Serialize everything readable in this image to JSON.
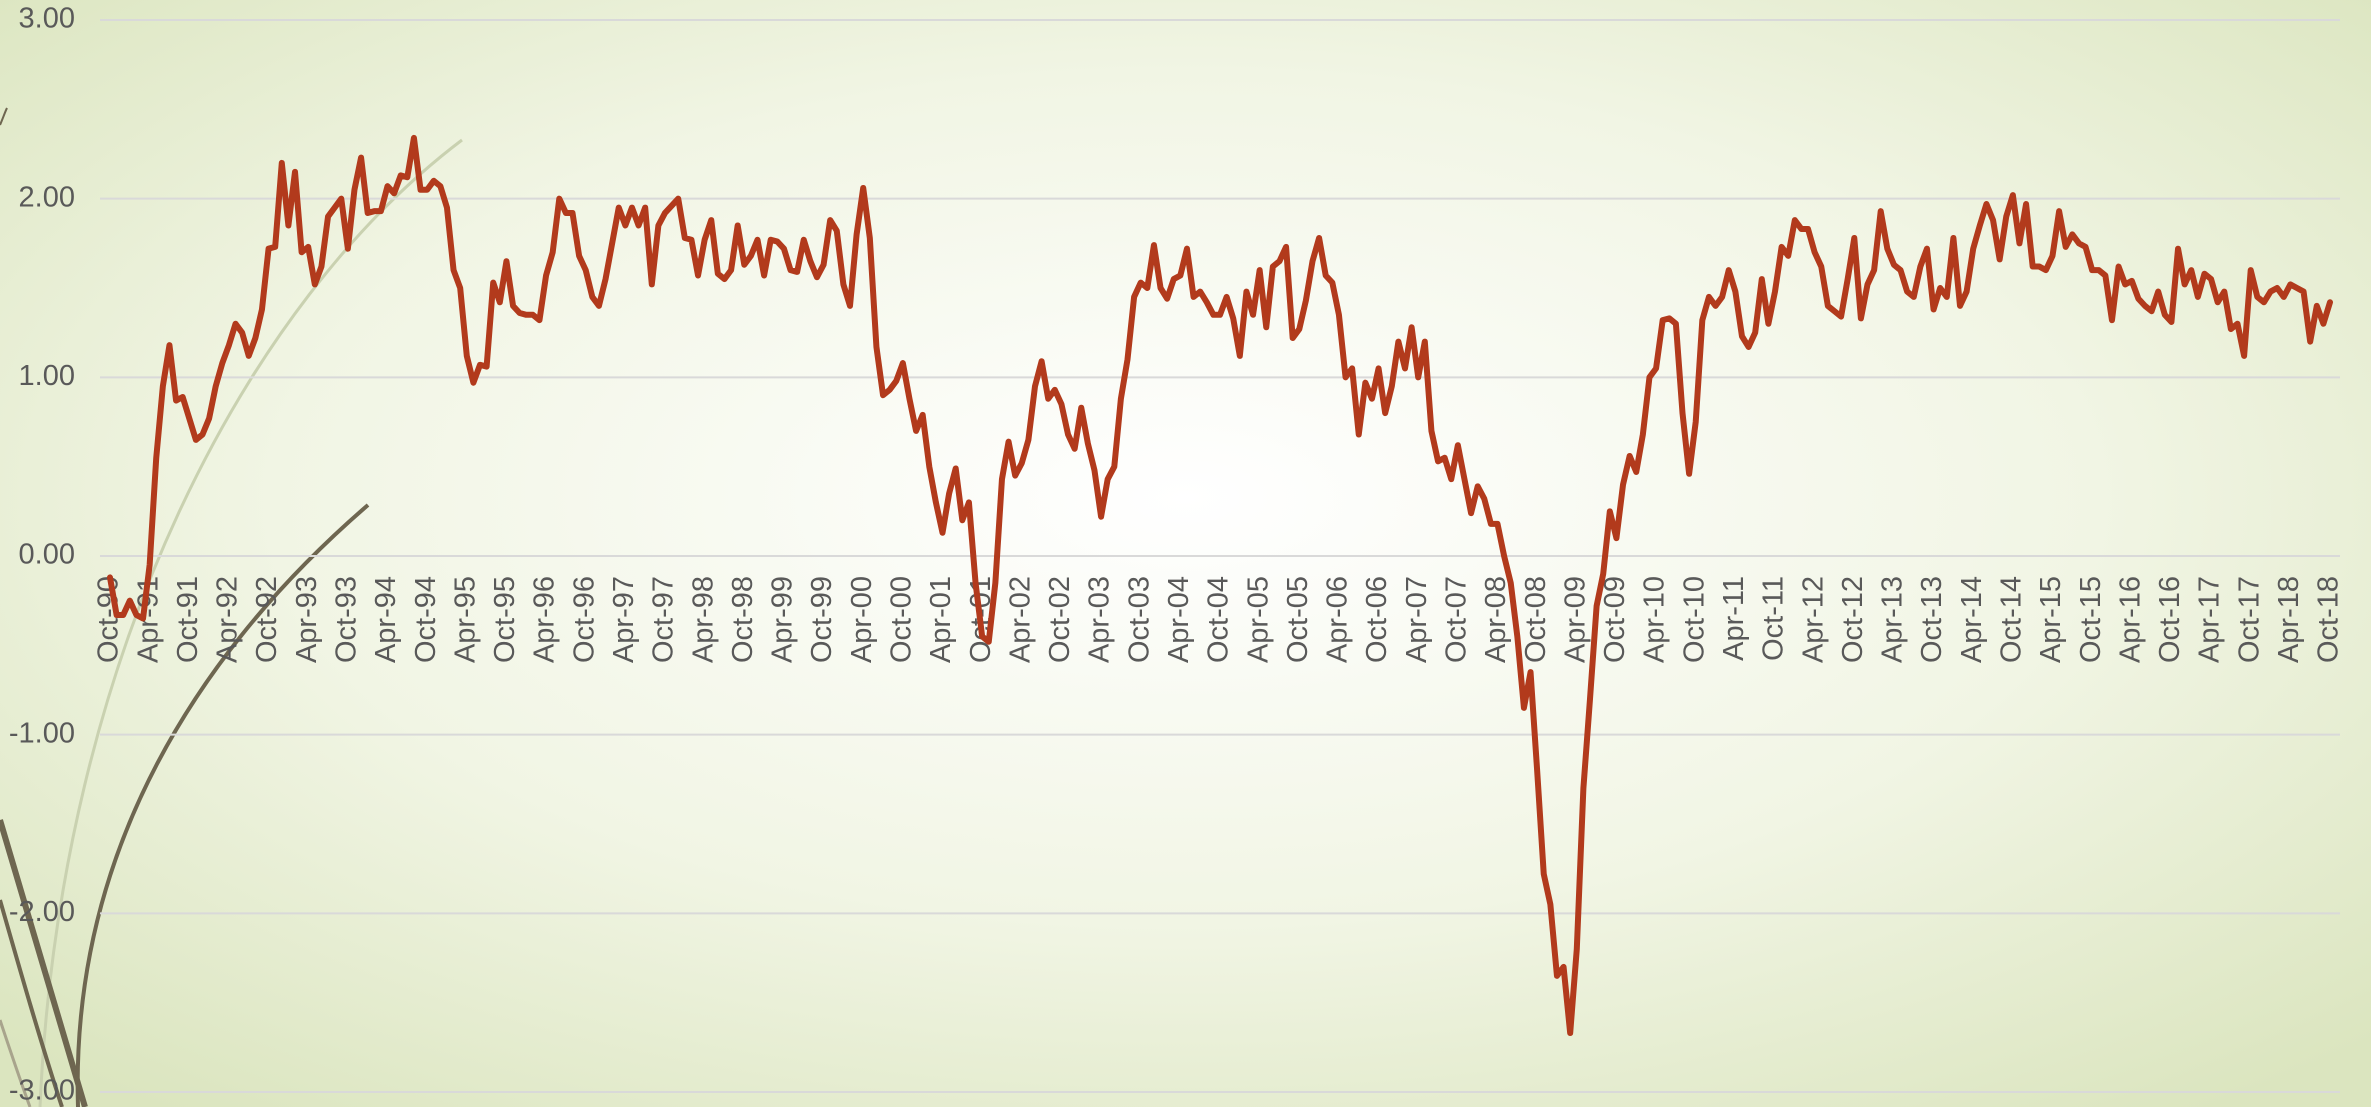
{
  "chart_data": {
    "type": "line",
    "color": "#b23a1c",
    "grid": true,
    "ylim": [
      -3,
      3
    ],
    "yticks": [
      {
        "value": -3,
        "label": "-3.00"
      },
      {
        "value": -2,
        "label": "-2.00"
      },
      {
        "value": -1,
        "label": "-1.00"
      },
      {
        "value": 0,
        "label": "0.00"
      },
      {
        "value": 1,
        "label": "1.00"
      },
      {
        "value": 2,
        "label": "2.00"
      },
      {
        "value": 3,
        "label": "3.00"
      }
    ],
    "categories": [
      "Oct-90",
      null,
      null,
      null,
      null,
      null,
      "Apr-91",
      null,
      null,
      null,
      null,
      null,
      "Oct-91",
      null,
      null,
      null,
      null,
      null,
      "Apr-92",
      null,
      null,
      null,
      null,
      null,
      "Oct-92",
      null,
      null,
      null,
      null,
      null,
      "Apr-93",
      null,
      null,
      null,
      null,
      null,
      "Oct-93",
      null,
      null,
      null,
      null,
      null,
      "Apr-94",
      null,
      null,
      null,
      null,
      null,
      "Oct-94",
      null,
      null,
      null,
      null,
      null,
      "Apr-95",
      null,
      null,
      null,
      null,
      null,
      "Oct-95",
      null,
      null,
      null,
      null,
      null,
      "Apr-96",
      null,
      null,
      null,
      null,
      null,
      "Oct-96",
      null,
      null,
      null,
      null,
      null,
      "Apr-97",
      null,
      null,
      null,
      null,
      null,
      "Oct-97",
      null,
      null,
      null,
      null,
      null,
      "Apr-98",
      null,
      null,
      null,
      null,
      null,
      "Oct-98",
      null,
      null,
      null,
      null,
      null,
      "Apr-99",
      null,
      null,
      null,
      null,
      null,
      "Oct-99",
      null,
      null,
      null,
      null,
      null,
      "Apr-00",
      null,
      null,
      null,
      null,
      null,
      "Oct-00",
      null,
      null,
      null,
      null,
      null,
      "Apr-01",
      null,
      null,
      null,
      null,
      null,
      "Oct-01",
      null,
      null,
      null,
      null,
      null,
      "Apr-02",
      null,
      null,
      null,
      null,
      null,
      "Oct-02",
      null,
      null,
      null,
      null,
      null,
      "Apr-03",
      null,
      null,
      null,
      null,
      null,
      "Oct-03",
      null,
      null,
      null,
      null,
      null,
      "Apr-04",
      null,
      null,
      null,
      null,
      null,
      "Oct-04",
      null,
      null,
      null,
      null,
      null,
      "Apr-05",
      null,
      null,
      null,
      null,
      null,
      "Oct-05",
      null,
      null,
      null,
      null,
      null,
      "Apr-06",
      null,
      null,
      null,
      null,
      null,
      "Oct-06",
      null,
      null,
      null,
      null,
      null,
      "Apr-07",
      null,
      null,
      null,
      null,
      null,
      "Oct-07",
      null,
      null,
      null,
      null,
      null,
      "Apr-08",
      null,
      null,
      null,
      null,
      null,
      "Oct-08",
      null,
      null,
      null,
      null,
      null,
      "Apr-09",
      null,
      null,
      null,
      null,
      null,
      "Oct-09",
      null,
      null,
      null,
      null,
      null,
      "Apr-10",
      null,
      null,
      null,
      null,
      null,
      "Oct-10",
      null,
      null,
      null,
      null,
      null,
      "Apr-11",
      null,
      null,
      null,
      null,
      null,
      "Oct-11",
      null,
      null,
      null,
      null,
      null,
      "Apr-12",
      null,
      null,
      null,
      null,
      null,
      "Oct-12",
      null,
      null,
      null,
      null,
      null,
      "Apr-13",
      null,
      null,
      null,
      null,
      null,
      "Oct-13",
      null,
      null,
      null,
      null,
      null,
      "Apr-14",
      null,
      null,
      null,
      null,
      null,
      "Oct-14",
      null,
      null,
      null,
      null,
      null,
      "Apr-15",
      null,
      null,
      null,
      null,
      null,
      "Oct-15",
      null,
      null,
      null,
      null,
      null,
      "Apr-16",
      null,
      null,
      null,
      null,
      null,
      "Oct-16",
      null,
      null,
      null,
      null,
      null,
      "Apr-17",
      null,
      null,
      null,
      null,
      null,
      "Oct-17",
      null,
      null,
      null,
      null,
      null,
      "Apr-18",
      null,
      null,
      null,
      null,
      null,
      "Oct-18"
    ],
    "values": [
      -0.12,
      -0.33,
      -0.33,
      -0.25,
      -0.33,
      -0.35,
      -0.05,
      0.55,
      0.95,
      1.18,
      0.87,
      0.89,
      0.77,
      0.65,
      0.68,
      0.77,
      0.95,
      1.08,
      1.18,
      1.3,
      1.25,
      1.12,
      1.22,
      1.38,
      1.72,
      1.73,
      2.2,
      1.85,
      2.15,
      1.7,
      1.73,
      1.52,
      1.62,
      1.9,
      1.95,
      2.0,
      1.72,
      2.05,
      2.23,
      1.92,
      1.93,
      1.93,
      2.07,
      2.03,
      2.13,
      2.12,
      2.34,
      2.05,
      2.05,
      2.1,
      2.07,
      1.95,
      1.6,
      1.5,
      1.12,
      0.97,
      1.07,
      1.06,
      1.53,
      1.42,
      1.65,
      1.4,
      1.36,
      1.35,
      1.35,
      1.32,
      1.57,
      1.7,
      2.0,
      1.92,
      1.92,
      1.68,
      1.6,
      1.45,
      1.4,
      1.55,
      1.75,
      1.95,
      1.85,
      1.95,
      1.85,
      1.95,
      1.52,
      1.85,
      1.92,
      1.96,
      2.0,
      1.78,
      1.77,
      1.57,
      1.77,
      1.88,
      1.58,
      1.55,
      1.6,
      1.85,
      1.63,
      1.68,
      1.77,
      1.57,
      1.77,
      1.76,
      1.72,
      1.6,
      1.59,
      1.77,
      1.65,
      1.56,
      1.63,
      1.88,
      1.82,
      1.52,
      1.4,
      1.8,
      2.06,
      1.78,
      1.17,
      0.9,
      0.93,
      0.98,
      1.08,
      0.88,
      0.7,
      0.79,
      0.5,
      0.3,
      0.13,
      0.35,
      0.49,
      0.2,
      0.3,
      -0.15,
      -0.45,
      -0.48,
      -0.15,
      0.43,
      0.64,
      0.45,
      0.52,
      0.65,
      0.95,
      1.09,
      0.88,
      0.93,
      0.85,
      0.68,
      0.6,
      0.83,
      0.63,
      0.48,
      0.22,
      0.43,
      0.5,
      0.88,
      1.1,
      1.45,
      1.53,
      1.5,
      1.74,
      1.5,
      1.44,
      1.55,
      1.57,
      1.72,
      1.45,
      1.48,
      1.42,
      1.35,
      1.35,
      1.45,
      1.33,
      1.12,
      1.48,
      1.35,
      1.6,
      1.28,
      1.62,
      1.65,
      1.73,
      1.22,
      1.27,
      1.43,
      1.65,
      1.78,
      1.57,
      1.53,
      1.35,
      1.0,
      1.05,
      0.68,
      0.97,
      0.88,
      1.05,
      0.8,
      0.95,
      1.2,
      1.05,
      1.28,
      1.0,
      1.2,
      0.7,
      0.53,
      0.55,
      0.43,
      0.62,
      0.43,
      0.24,
      0.39,
      0.32,
      0.18,
      0.18,
      0.0,
      -0.15,
      -0.45,
      -0.85,
      -0.65,
      -1.2,
      -1.78,
      -1.95,
      -2.35,
      -2.3,
      -2.67,
      -2.2,
      -1.3,
      -0.8,
      -0.28,
      -0.1,
      0.25,
      0.1,
      0.4,
      0.56,
      0.47,
      0.68,
      1.0,
      1.05,
      1.32,
      1.33,
      1.3,
      0.8,
      0.46,
      0.75,
      1.32,
      1.45,
      1.4,
      1.45,
      1.6,
      1.48,
      1.23,
      1.17,
      1.25,
      1.55,
      1.3,
      1.48,
      1.73,
      1.68,
      1.88,
      1.83,
      1.83,
      1.7,
      1.62,
      1.4,
      1.37,
      1.34,
      1.55,
      1.78,
      1.33,
      1.52,
      1.6,
      1.93,
      1.72,
      1.63,
      1.6,
      1.48,
      1.45,
      1.62,
      1.72,
      1.38,
      1.5,
      1.45,
      1.78,
      1.4,
      1.48,
      1.72,
      1.85,
      1.97,
      1.88,
      1.66,
      1.9,
      2.02,
      1.75,
      1.97,
      1.62,
      1.62,
      1.6,
      1.68,
      1.93,
      1.73,
      1.8,
      1.75,
      1.73,
      1.6,
      1.6,
      1.57,
      1.32,
      1.62,
      1.52,
      1.54,
      1.44,
      1.4,
      1.37,
      1.48,
      1.35,
      1.31,
      1.72,
      1.52,
      1.6,
      1.45,
      1.58,
      1.55,
      1.42,
      1.48,
      1.27,
      1.3,
      1.12,
      1.6,
      1.45,
      1.42,
      1.48,
      1.5,
      1.45,
      1.52,
      1.5,
      1.48,
      1.2,
      1.4,
      1.3,
      1.42
    ]
  }
}
